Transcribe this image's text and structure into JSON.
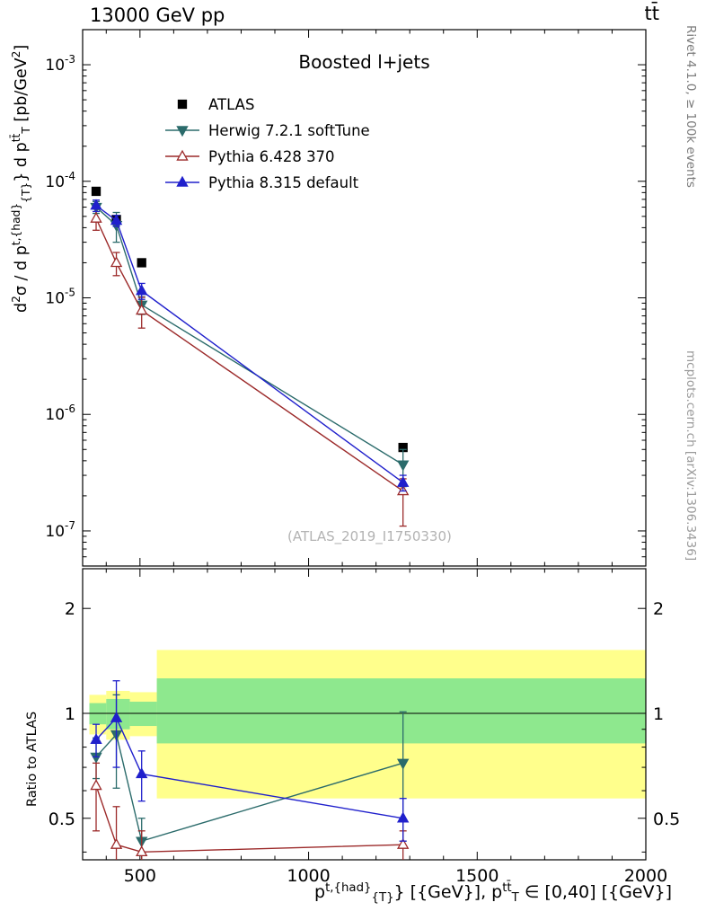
{
  "header": {
    "left": "13000 GeV pp",
    "right": "tt̄"
  },
  "labels": {
    "ylabel_main": "d^{2}σ / d p^{t,{had}}_{{T}}} d p^{tt̄}_{T} [pb/GeV^{2}]",
    "ylabel_ratio": "Ratio to ATLAS",
    "xlabel": "p^{t,{had}}_{{T}}} [{GeV}], p^{tt̄}_{T} ∈ [0,40] [{GeV}]",
    "right_top": "Rivet 4.1.0, ≥ 100k events",
    "right_bottom": "mcplots.cern.ch [arXiv:1306.3436]",
    "watermark": "(ATLAS_2019_I1750330)"
  },
  "chart_data": {
    "type": "scatter",
    "title": "Boosted l+jets",
    "xlabel": "p^{t,{had}}_{{T}}} [{GeV}], p^{tt̄}_{T} ∈ [0,40] [{GeV}]",
    "ylabel": "d^{2}σ / d p^{t,{had}}_{{T}}} d p^{tt̄}_{T} [pb/GeV^{2}]",
    "ratio_ylabel": "Ratio to ATLAS",
    "xlim": [
      330,
      2000
    ],
    "main_ylim": [
      5e-08,
      0.002
    ],
    "ratio_ylim": [
      0.38,
      2.6
    ],
    "xticks_major": [
      500,
      1000,
      1500,
      2000
    ],
    "xtick_minor_step": 100,
    "ratio_ticks_labeled": [
      0.5,
      1,
      2
    ],
    "ratio_ticks_minor": [
      0.4,
      0.6,
      0.7,
      0.8,
      0.9
    ],
    "x": [
      370,
      430,
      505,
      1280
    ],
    "series": [
      {
        "name": "ATLAS",
        "marker": "square",
        "filled": true,
        "color": "#000000",
        "line": false,
        "y": [
          8.2e-05,
          4.7e-05,
          2e-05,
          5.2e-07
        ],
        "yerr": [
          [
            4e-06,
            4e-06
          ],
          [
            2.5e-06,
            2.5e-06
          ],
          [
            1e-06,
            1e-06
          ],
          [
            3e-08,
            3e-08
          ]
        ]
      },
      {
        "name": "Herwig 7.2.1 softTune",
        "marker": "triangle-down",
        "filled": true,
        "color": "#2b6b6b",
        "line": true,
        "y": [
          6e-05,
          4.2e-05,
          8.7e-06,
          3.7e-07
        ],
        "yerr": [
          [
            7e-06,
            7e-06
          ],
          [
            1.2e-05,
            1.2e-05
          ],
          [
            1.5e-06,
            1.5e-06
          ],
          [
            1.3e-07,
            1.3e-07
          ]
        ],
        "ratio": [
          0.75,
          0.87,
          0.43,
          0.72
        ],
        "ratio_err": [
          [
            0.1,
            0.1
          ],
          [
            0.26,
            0.26
          ],
          [
            0.07,
            0.07
          ],
          [
            0.29,
            0.29
          ]
        ]
      },
      {
        "name": "Pythia 6.428 370",
        "marker": "triangle-up",
        "filled": false,
        "color": "#9c2a2a",
        "line": true,
        "y": [
          4.8e-05,
          2e-05,
          7.8e-06,
          2.2e-07
        ],
        "yerr": [
          [
            1e-05,
            1e-05
          ],
          [
            4.5e-06,
            4.5e-06
          ],
          [
            2.3e-06,
            2.3e-06
          ],
          [
            1.1e-07,
            6e-08
          ]
        ],
        "ratio": [
          0.62,
          0.42,
          0.4,
          0.42
        ],
        "ratio_err": [
          [
            0.16,
            0.1
          ],
          [
            0.09,
            0.12
          ],
          [
            0.05,
            0.06
          ],
          [
            0.05,
            0.04
          ]
        ]
      },
      {
        "name": "Pythia 8.315 default",
        "marker": "triangle-up",
        "filled": true,
        "color": "#2020cc",
        "line": true,
        "y": [
          6.2e-05,
          4.6e-05,
          1.15e-05,
          2.6e-07
        ],
        "yerr": [
          [
            7e-06,
            7e-06
          ],
          [
            5e-06,
            5e-06
          ],
          [
            1.8e-06,
            1.8e-06
          ],
          [
            4e-08,
            4e-08
          ]
        ],
        "ratio": [
          0.84,
          0.97,
          0.67,
          0.5
        ],
        "ratio_err": [
          [
            0.09,
            0.09
          ],
          [
            0.27,
            0.27
          ],
          [
            0.11,
            0.11
          ],
          [
            0.07,
            0.07
          ]
        ]
      }
    ],
    "bands": {
      "yellow_color": "#ffff8c",
      "green_color": "#8ee88e",
      "segments": [
        {
          "x1": 350,
          "x2": 400,
          "yellow": [
            0.87,
            1.13
          ],
          "green": [
            0.93,
            1.07
          ]
        },
        {
          "x1": 400,
          "x2": 470,
          "yellow": [
            0.84,
            1.16
          ],
          "green": [
            0.9,
            1.1
          ]
        },
        {
          "x1": 470,
          "x2": 550,
          "yellow": [
            0.86,
            1.15
          ],
          "green": [
            0.92,
            1.08
          ]
        },
        {
          "x1": 550,
          "x2": 2000,
          "yellow": [
            0.57,
            1.52
          ],
          "green": [
            0.82,
            1.26
          ]
        }
      ]
    }
  }
}
